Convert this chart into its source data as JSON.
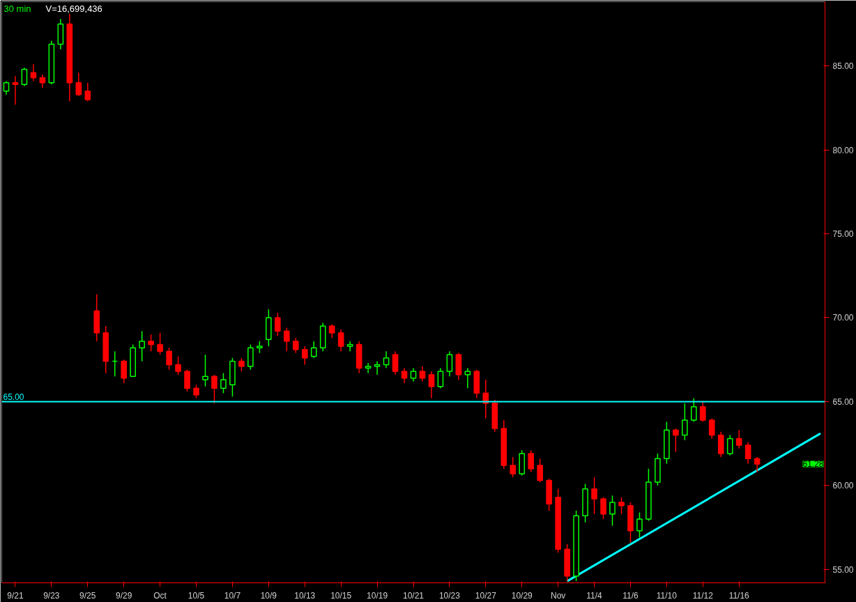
{
  "chart_data": {
    "type": "candlestick",
    "title": "30 min",
    "subtitle": "V=16,699,436",
    "categories": [
      null,
      "9/21",
      null,
      null,
      null,
      "9/23",
      null,
      null,
      null,
      "9/25",
      null,
      null,
      null,
      "9/29",
      null,
      null,
      null,
      "Oct",
      null,
      null,
      null,
      "10/5",
      null,
      null,
      null,
      "10/7",
      null,
      null,
      null,
      "10/9",
      null,
      null,
      null,
      "10/13",
      null,
      null,
      null,
      "10/15",
      null,
      null,
      null,
      "10/19",
      null,
      null,
      null,
      "10/21",
      null,
      null,
      null,
      "10/23",
      null,
      null,
      null,
      "10/27",
      null,
      null,
      null,
      "10/29",
      null,
      null,
      null,
      "Nov",
      null,
      null,
      null,
      "11/4",
      null,
      null,
      null,
      "11/6",
      null,
      null,
      null,
      "11/10",
      null,
      null,
      null,
      "11/12",
      null,
      null,
      null,
      "11/16",
      null,
      null,
      null,
      null,
      null,
      null,
      null,
      null,
      null
    ],
    "ohlc": [
      [
        83.5,
        84.1,
        83.3,
        84.0
      ],
      [
        84.0,
        84.4,
        82.7,
        83.9
      ],
      [
        83.9,
        84.9,
        83.8,
        84.8
      ],
      [
        84.6,
        85.1,
        84.1,
        84.3
      ],
      [
        84.3,
        84.5,
        83.7,
        84.0
      ],
      [
        84.0,
        86.5,
        83.9,
        86.3
      ],
      [
        86.3,
        87.8,
        86.0,
        87.5
      ],
      [
        87.5,
        88.1,
        82.9,
        84.0
      ],
      [
        84.0,
        84.6,
        83.2,
        83.3
      ],
      [
        83.5,
        84.0,
        82.9,
        83.0
      ],
      [
        70.4,
        71.4,
        68.6,
        69.1
      ],
      [
        69.1,
        69.5,
        66.7,
        67.4
      ],
      [
        67.4,
        68.0,
        66.5,
        67.4
      ],
      [
        67.4,
        67.5,
        66.1,
        66.4
      ],
      [
        66.5,
        68.4,
        66.5,
        68.2
      ],
      [
        68.2,
        69.2,
        67.4,
        68.6
      ],
      [
        68.6,
        69.0,
        68.0,
        68.4
      ],
      [
        68.4,
        69.1,
        67.8,
        68.0
      ],
      [
        68.0,
        68.2,
        66.9,
        67.2
      ],
      [
        67.2,
        67.7,
        66.6,
        66.8
      ],
      [
        66.8,
        66.9,
        65.6,
        65.8
      ],
      [
        65.8,
        66.0,
        65.2,
        65.4
      ],
      [
        66.3,
        67.8,
        65.9,
        66.5
      ],
      [
        66.5,
        66.6,
        64.9,
        65.8
      ],
      [
        65.8,
        66.7,
        65.5,
        66.3
      ],
      [
        66.0,
        67.6,
        65.3,
        67.4
      ],
      [
        67.4,
        67.6,
        66.8,
        67.1
      ],
      [
        67.1,
        68.4,
        66.9,
        68.2
      ],
      [
        68.2,
        68.6,
        67.9,
        68.3
      ],
      [
        68.7,
        70.5,
        68.3,
        70.0
      ],
      [
        70.0,
        70.3,
        68.9,
        69.2
      ],
      [
        69.2,
        69.4,
        68.0,
        68.6
      ],
      [
        68.6,
        68.8,
        67.9,
        68.1
      ],
      [
        68.1,
        68.3,
        67.2,
        67.6
      ],
      [
        67.7,
        68.6,
        67.6,
        68.2
      ],
      [
        68.2,
        69.7,
        68.0,
        69.5
      ],
      [
        69.5,
        69.6,
        68.8,
        69.1
      ],
      [
        69.1,
        69.3,
        68.0,
        68.3
      ],
      [
        68.3,
        68.6,
        68.0,
        68.4
      ],
      [
        68.4,
        68.6,
        66.7,
        67.0
      ],
      [
        67.0,
        67.3,
        66.7,
        67.1
      ],
      [
        67.1,
        67.4,
        66.6,
        67.2
      ],
      [
        67.2,
        68.0,
        67.0,
        67.6
      ],
      [
        67.8,
        68.0,
        66.6,
        66.8
      ],
      [
        66.8,
        67.0,
        66.1,
        66.4
      ],
      [
        66.4,
        67.0,
        66.2,
        66.8
      ],
      [
        66.8,
        67.1,
        66.2,
        66.4
      ],
      [
        66.6,
        66.8,
        65.2,
        65.9
      ],
      [
        65.9,
        67.0,
        65.8,
        66.8
      ],
      [
        66.8,
        68.0,
        66.5,
        67.8
      ],
      [
        67.8,
        67.9,
        66.3,
        66.6
      ],
      [
        66.6,
        67.0,
        65.8,
        66.8
      ],
      [
        66.8,
        66.9,
        65.2,
        65.5
      ],
      [
        65.5,
        66.3,
        64.0,
        64.9
      ],
      [
        64.9,
        65.1,
        63.2,
        63.4
      ],
      [
        63.4,
        63.9,
        61.0,
        61.2
      ],
      [
        61.2,
        61.7,
        60.5,
        60.7
      ],
      [
        60.7,
        62.1,
        60.6,
        61.9
      ],
      [
        61.9,
        62.1,
        60.8,
        61.0
      ],
      [
        61.2,
        61.6,
        60.2,
        60.3
      ],
      [
        60.3,
        60.4,
        58.5,
        58.9
      ],
      [
        59.3,
        59.8,
        56.0,
        56.2
      ],
      [
        56.2,
        56.5,
        54.3,
        54.6
      ],
      [
        54.6,
        58.5,
        54.3,
        58.2
      ],
      [
        58.2,
        60.1,
        57.8,
        59.8
      ],
      [
        59.8,
        60.5,
        58.3,
        59.2
      ],
      [
        59.2,
        59.3,
        58.0,
        58.3
      ],
      [
        58.3,
        59.4,
        57.6,
        59.0
      ],
      [
        59.0,
        59.3,
        58.3,
        58.8
      ],
      [
        58.8,
        59.0,
        56.6,
        57.3
      ],
      [
        57.3,
        58.4,
        56.9,
        58.0
      ],
      [
        58.0,
        61.0,
        57.9,
        60.2
      ],
      [
        60.2,
        61.9,
        60.0,
        61.6
      ],
      [
        61.6,
        63.8,
        61.3,
        63.3
      ],
      [
        63.3,
        63.4,
        62.0,
        63.0
      ],
      [
        63.0,
        64.9,
        62.7,
        63.9
      ],
      [
        63.9,
        65.2,
        63.8,
        64.7
      ],
      [
        64.7,
        65.0,
        63.8,
        63.9
      ],
      [
        63.9,
        64.0,
        62.8,
        63.0
      ],
      [
        63.0,
        63.2,
        61.7,
        61.9
      ],
      [
        61.9,
        63.0,
        61.8,
        62.8
      ],
      [
        62.8,
        63.3,
        62.2,
        62.4
      ],
      [
        62.4,
        62.6,
        61.3,
        61.6
      ],
      [
        61.6,
        61.7,
        60.8,
        61.28
      ],
      null,
      null,
      null,
      null,
      null,
      null,
      null
    ],
    "series": [
      {
        "type": "line",
        "color": "#00ffff",
        "values": [
          null,
          null,
          null,
          null,
          null,
          null,
          null,
          null,
          null,
          null,
          null,
          null,
          null,
          null,
          null,
          null,
          null,
          null,
          null,
          null,
          null,
          null,
          null,
          null,
          null,
          null,
          null,
          null,
          null,
          null,
          null,
          null,
          null,
          null,
          null,
          null,
          null,
          null,
          null,
          null,
          null,
          null,
          null,
          null,
          null,
          null,
          null,
          null,
          null,
          null,
          null,
          null,
          null,
          null,
          null,
          null,
          null,
          null,
          null,
          null,
          null,
          null,
          54.3,
          null,
          null,
          null,
          null,
          null,
          null,
          null,
          null,
          null,
          null,
          null,
          null,
          null,
          null,
          null,
          null,
          null,
          null,
          null,
          null,
          null,
          null,
          null,
          null,
          null,
          null,
          null,
          63.1
        ]
      }
    ],
    "ref_lines": [
      {
        "axis": "y",
        "value": 65,
        "label": "65.00",
        "color": "#00ffff"
      }
    ],
    "annotations": [
      "61.28"
    ],
    "ylim": [
      54.2,
      88.83
    ],
    "yticks": [
      {
        "value": 55,
        "label": "55.00"
      },
      {
        "value": 60,
        "label": "60.00"
      },
      {
        "value": 65,
        "label": "65.00"
      },
      {
        "value": 70,
        "label": "70.00"
      },
      {
        "value": 75,
        "label": "75.00"
      },
      {
        "value": 80,
        "label": "80.00"
      },
      {
        "value": 85,
        "label": "85.00"
      }
    ],
    "grid": false
  }
}
